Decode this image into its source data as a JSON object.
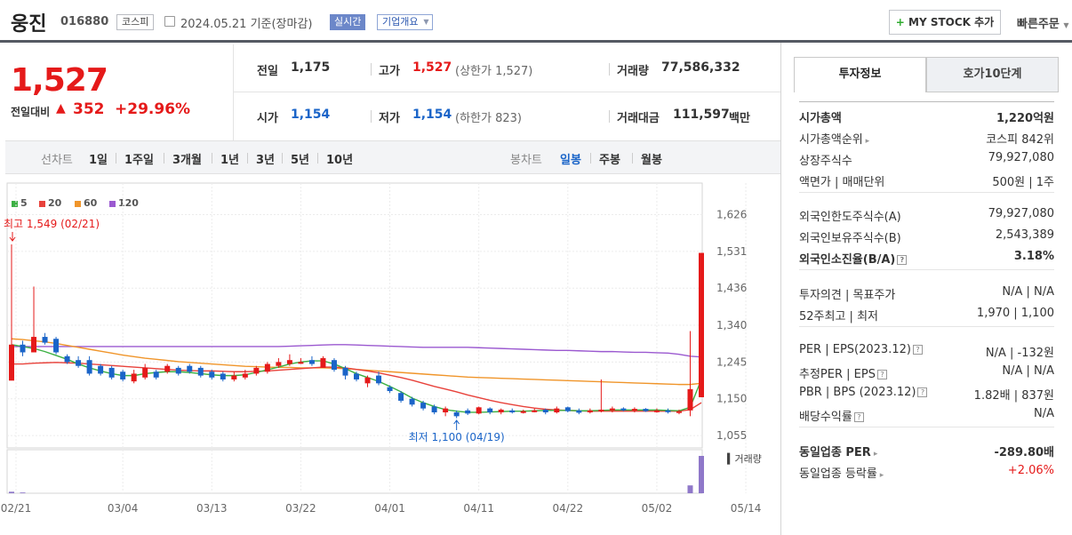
{
  "header": {
    "name": "웅진",
    "code": "016880",
    "market": "코스피",
    "date_text": "2024.05.21 기준(장마감)",
    "realtime": "실시간",
    "company_info": "기업개요",
    "mystock": "MY STOCK 추가",
    "quick_order": "빠른주문"
  },
  "price": {
    "current": "1,527",
    "change_label": "전일대비",
    "change": "352",
    "change_pct": "+29.96%"
  },
  "stats": {
    "prev_label": "전일",
    "prev": "1,175",
    "high_label": "고가",
    "high": "1,527",
    "high_note": "(상한가 1,527)",
    "volume_label": "거래량",
    "volume": "77,586,332",
    "open_label": "시가",
    "open": "1,154",
    "low_label": "저가",
    "low": "1,154",
    "low_note": "(하한가 823)",
    "amount_label": "거래대금",
    "amount": "111,597",
    "amount_unit": "백만"
  },
  "toolbar": {
    "line_label": "선차트",
    "line_periods": [
      "1일",
      "1주일",
      "3개월",
      "1년",
      "3년",
      "5년",
      "10년"
    ],
    "candle_label": "봉차트",
    "candle_periods": [
      "일봉",
      "주봉",
      "월봉"
    ],
    "active_candle": "일봉"
  },
  "colors": {
    "up": "#e51a1a",
    "down": "#1a64c8",
    "ma5": "#3cb043",
    "ma20": "#e8423b",
    "ma60": "#f0952a",
    "ma120": "#9b59d0",
    "volume": "#8f78c9",
    "accent_pill": "#6c87c9"
  },
  "chart_data": {
    "type": "candlestick",
    "legend": [
      "5",
      "20",
      "60",
      "120"
    ],
    "y_ticks": [
      1626,
      1531,
      1436,
      1340,
      1245,
      1150,
      1055
    ],
    "ylim": [
      1030,
      1650
    ],
    "x_ticks": [
      "02/21",
      "03/04",
      "03/13",
      "03/22",
      "04/01",
      "04/11",
      "04/22",
      "05/02",
      "05/14"
    ],
    "annotation_high": "최고 1,549 (02/21)",
    "annotation_low": "최저 1,100 (04/19)",
    "volume_label": "거래량",
    "candles": [
      [
        1197,
        1549,
        1200,
        1290
      ],
      [
        1290,
        1300,
        1260,
        1270
      ],
      [
        1270,
        1440,
        1270,
        1310
      ],
      [
        1310,
        1320,
        1290,
        1295
      ],
      [
        1305,
        1310,
        1265,
        1270
      ],
      [
        1260,
        1265,
        1240,
        1245
      ],
      [
        1250,
        1260,
        1230,
        1235
      ],
      [
        1250,
        1260,
        1210,
        1215
      ],
      [
        1235,
        1240,
        1210,
        1215
      ],
      [
        1230,
        1235,
        1200,
        1205
      ],
      [
        1220,
        1225,
        1195,
        1200
      ],
      [
        1195,
        1225,
        1190,
        1215
      ],
      [
        1205,
        1240,
        1200,
        1230
      ],
      [
        1220,
        1225,
        1200,
        1205
      ],
      [
        1220,
        1240,
        1215,
        1235
      ],
      [
        1230,
        1235,
        1210,
        1215
      ],
      [
        1235,
        1240,
        1215,
        1220
      ],
      [
        1230,
        1235,
        1205,
        1210
      ],
      [
        1220,
        1225,
        1200,
        1205
      ],
      [
        1215,
        1220,
        1195,
        1200
      ],
      [
        1200,
        1220,
        1195,
        1210
      ],
      [
        1205,
        1225,
        1200,
        1215
      ],
      [
        1215,
        1235,
        1210,
        1230
      ],
      [
        1220,
        1245,
        1215,
        1240
      ],
      [
        1235,
        1255,
        1230,
        1245
      ],
      [
        1240,
        1265,
        1235,
        1250
      ],
      [
        1245,
        1255,
        1240,
        1245
      ],
      [
        1250,
        1260,
        1235,
        1240
      ],
      [
        1230,
        1260,
        1230,
        1255
      ],
      [
        1250,
        1255,
        1220,
        1225
      ],
      [
        1230,
        1235,
        1200,
        1210
      ],
      [
        1215,
        1220,
        1195,
        1200
      ],
      [
        1190,
        1210,
        1180,
        1205
      ],
      [
        1210,
        1220,
        1185,
        1190
      ],
      [
        1180,
        1185,
        1165,
        1170
      ],
      [
        1165,
        1170,
        1140,
        1145
      ],
      [
        1150,
        1155,
        1130,
        1135
      ],
      [
        1140,
        1145,
        1120,
        1125
      ],
      [
        1130,
        1135,
        1110,
        1115
      ],
      [
        1115,
        1130,
        1105,
        1125
      ],
      [
        1115,
        1120,
        1100,
        1105
      ],
      [
        1120,
        1125,
        1108,
        1112
      ],
      [
        1112,
        1130,
        1110,
        1128
      ],
      [
        1125,
        1128,
        1110,
        1115
      ],
      [
        1115,
        1125,
        1110,
        1122
      ],
      [
        1120,
        1125,
        1112,
        1115
      ],
      [
        1115,
        1122,
        1112,
        1118
      ],
      [
        1118,
        1125,
        1115,
        1120
      ],
      [
        1122,
        1125,
        1110,
        1115
      ],
      [
        1115,
        1130,
        1112,
        1125
      ],
      [
        1128,
        1130,
        1115,
        1118
      ],
      [
        1120,
        1125,
        1110,
        1114
      ],
      [
        1115,
        1125,
        1112,
        1120
      ],
      [
        1118,
        1200,
        1115,
        1122
      ],
      [
        1120,
        1130,
        1115,
        1125
      ],
      [
        1125,
        1128,
        1118,
        1120
      ],
      [
        1120,
        1128,
        1115,
        1124
      ],
      [
        1124,
        1126,
        1116,
        1118
      ],
      [
        1118,
        1125,
        1114,
        1120
      ],
      [
        1120,
        1125,
        1112,
        1116
      ],
      [
        1116,
        1122,
        1110,
        1118
      ],
      [
        1120,
        1325,
        1105,
        1175
      ],
      [
        1154,
        1527,
        1154,
        1527
      ]
    ],
    "ma5": [
      1290,
      1285,
      1280,
      1272,
      1262,
      1252,
      1240,
      1230,
      1222,
      1215,
      1210,
      1210,
      1215,
      1218,
      1220,
      1220,
      1218,
      1215,
      1212,
      1210,
      1210,
      1212,
      1218,
      1225,
      1232,
      1240,
      1245,
      1248,
      1248,
      1240,
      1228,
      1215,
      1205,
      1195,
      1182,
      1168,
      1152,
      1140,
      1130,
      1122,
      1118,
      1115,
      1115,
      1116,
      1117,
      1118,
      1118,
      1119,
      1120,
      1120,
      1120,
      1119,
      1119,
      1120,
      1121,
      1121,
      1121,
      1121,
      1121,
      1120,
      1119,
      1128,
      1200
    ],
    "ma20": [
      1240,
      1240,
      1242,
      1243,
      1244,
      1243,
      1242,
      1240,
      1238,
      1236,
      1234,
      1232,
      1230,
      1228,
      1226,
      1224,
      1223,
      1222,
      1222,
      1221,
      1220,
      1220,
      1221,
      1222,
      1224,
      1226,
      1228,
      1230,
      1232,
      1232,
      1230,
      1226,
      1222,
      1217,
      1211,
      1205,
      1198,
      1190,
      1182,
      1175,
      1168,
      1160,
      1153,
      1146,
      1140,
      1135,
      1130,
      1126,
      1123,
      1121,
      1120,
      1119,
      1118,
      1118,
      1118,
      1118,
      1118,
      1118,
      1118,
      1118,
      1118,
      1122,
      1140
    ],
    "ma60": [
      1305,
      1303,
      1300,
      1297,
      1293,
      1288,
      1283,
      1278,
      1273,
      1268,
      1263,
      1259,
      1255,
      1252,
      1249,
      1246,
      1244,
      1242,
      1240,
      1238,
      1236,
      1234,
      1233,
      1232,
      1231,
      1231,
      1230,
      1230,
      1230,
      1229,
      1228,
      1226,
      1224,
      1222,
      1220,
      1218,
      1216,
      1214,
      1212,
      1210,
      1208,
      1206,
      1205,
      1204,
      1203,
      1202,
      1201,
      1200,
      1199,
      1198,
      1197,
      1196,
      1195,
      1194,
      1193,
      1192,
      1191,
      1190,
      1189,
      1188,
      1187,
      1187,
      1190
    ],
    "ma120": [
      1285,
      1285,
      1285,
      1285,
      1285,
      1285,
      1285,
      1285,
      1285,
      1285,
      1285,
      1285,
      1285,
      1285,
      1285,
      1285,
      1285,
      1285,
      1285,
      1285,
      1285,
      1285,
      1285,
      1285,
      1285,
      1286,
      1287,
      1288,
      1289,
      1290,
      1290,
      1289,
      1288,
      1287,
      1286,
      1285,
      1284,
      1283,
      1283,
      1283,
      1283,
      1283,
      1282,
      1281,
      1280,
      1279,
      1278,
      1277,
      1276,
      1275,
      1275,
      1274,
      1273,
      1272,
      1272,
      1271,
      1270,
      1270,
      1269,
      1268,
      1265,
      1260,
      1258
    ],
    "volumes": [
      40,
      20,
      0,
      0,
      0,
      0,
      0,
      0,
      0,
      0,
      0,
      0,
      0,
      0,
      0,
      0,
      0,
      0,
      0,
      0,
      0,
      0,
      0,
      0,
      0,
      0,
      0,
      0,
      0,
      0,
      0,
      0,
      0,
      0,
      0,
      0,
      0,
      0,
      0,
      0,
      0,
      0,
      0,
      0,
      0,
      0,
      0,
      0,
      0,
      0,
      0,
      0,
      0,
      0,
      0,
      0,
      0,
      0,
      0,
      0,
      0,
      210,
      1000
    ]
  },
  "info": {
    "tab_active": "투자정보",
    "tab_other": "호가10단계",
    "rows1": [
      {
        "k": "시가총액",
        "v": "1,220억원",
        "bold": true
      },
      {
        "k": "시가총액순위",
        "v": "코스피 842위",
        "arrow": true
      },
      {
        "k": "상장주식수",
        "v": "79,927,080"
      },
      {
        "k": "액면가 | 매매단위",
        "v": "500원 | 1주"
      }
    ],
    "rows2": [
      {
        "k": "외국인한도주식수(A)",
        "v": "79,927,080"
      },
      {
        "k": "외국인보유주식수(B)",
        "v": "2,543,389"
      },
      {
        "k": "외국인소진율(B/A)",
        "v": "3.18%",
        "bold": true,
        "help": true
      }
    ],
    "rows3": [
      {
        "k": "투자의견 | 목표주가",
        "v": "N/A | N/A"
      },
      {
        "k": "52주최고 | 최저",
        "v": "1,970 | 1,100"
      }
    ],
    "rows4": [
      {
        "k": "PER | EPS(2023.12)",
        "v": "N/A | -132원",
        "help": true
      },
      {
        "k": "추정PER | EPS",
        "v": "N/A | N/A",
        "help": true
      },
      {
        "k": "PBR | BPS (2023.12)",
        "v": "1.82배 | 837원",
        "help": true
      },
      {
        "k": "배당수익률",
        "v": "N/A",
        "help": true
      }
    ],
    "rows5": [
      {
        "k": "동일업종 PER",
        "v": "-289.80배",
        "bold": true,
        "arrow": true
      },
      {
        "k": "동일업종 등락률",
        "v": "+2.06%",
        "red": true,
        "arrow": true
      }
    ]
  }
}
